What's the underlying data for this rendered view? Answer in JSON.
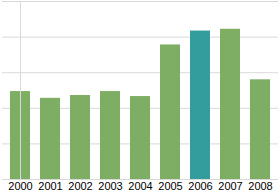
{
  "chart_data": {
    "type": "bar",
    "categories": [
      "2000",
      "2001",
      "2002",
      "2003",
      "2004",
      "2005",
      "2006",
      "2007",
      "2008"
    ],
    "values": [
      2.47,
      2.28,
      2.36,
      2.47,
      2.33,
      3.78,
      4.17,
      4.22,
      2.8
    ],
    "colors": [
      "#7dae63",
      "#7dae63",
      "#7dae63",
      "#7dae63",
      "#7dae63",
      "#7dae63",
      "#339c9c",
      "#7dae63",
      "#7dae63"
    ],
    "ylim": [
      0,
      5
    ],
    "yticks": [
      0,
      1,
      2,
      3,
      4,
      5
    ],
    "grid": true,
    "tick_labels": "x"
  }
}
